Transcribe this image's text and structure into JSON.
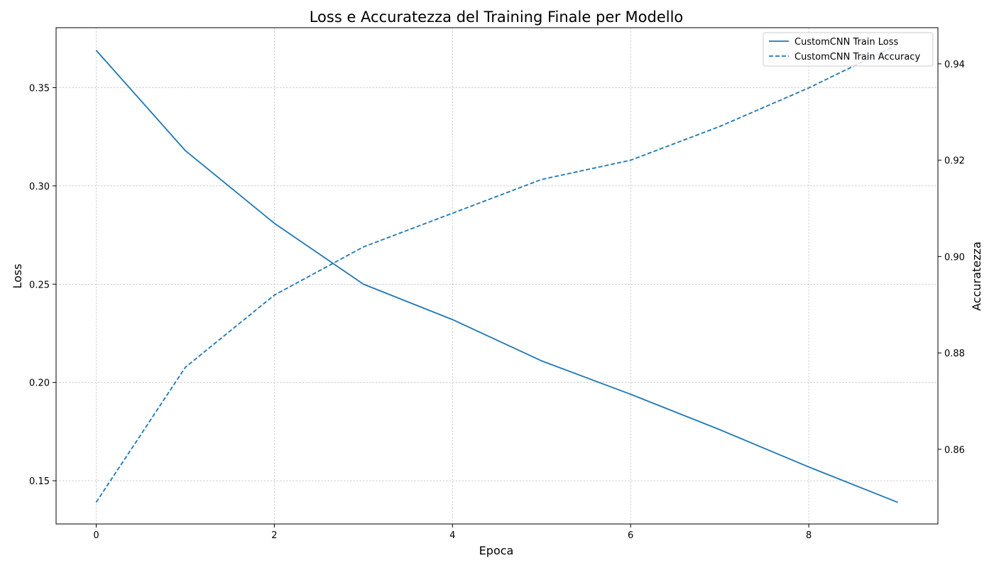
{
  "chart_data": {
    "type": "line",
    "title": "Loss e Accuratezza del Training Finale per Modello",
    "xlabel": "Epoca",
    "ylabel_left": "Loss",
    "ylabel_right": "Accuratezza",
    "x": [
      0,
      1,
      2,
      3,
      4,
      5,
      6,
      7,
      8,
      9
    ],
    "xlim": [
      -0.45,
      9.45
    ],
    "xticks": [
      0,
      2,
      4,
      6,
      8
    ],
    "ylim_left": [
      0.128,
      0.3805
    ],
    "yticks_left": [
      0.15,
      0.2,
      0.25,
      0.3,
      0.35
    ],
    "ylim_right": [
      0.8445,
      0.9475
    ],
    "yticks_right": [
      0.86,
      0.88,
      0.9,
      0.92,
      0.94
    ],
    "grid": true,
    "legend_position": "top-right",
    "series": [
      {
        "name": "CustomCNN Train Loss",
        "axis": "left",
        "style": "solid",
        "color": "#1f77b4",
        "values": [
          0.369,
          0.318,
          0.281,
          0.25,
          0.232,
          0.211,
          0.194,
          0.176,
          0.157,
          0.139
        ]
      },
      {
        "name": "CustomCNN Train Accuracy",
        "axis": "right",
        "style": "dashed",
        "color": "#1f77b4",
        "values": [
          0.849,
          0.877,
          0.892,
          0.902,
          0.909,
          0.916,
          0.92,
          0.927,
          0.935,
          0.944
        ]
      }
    ]
  }
}
